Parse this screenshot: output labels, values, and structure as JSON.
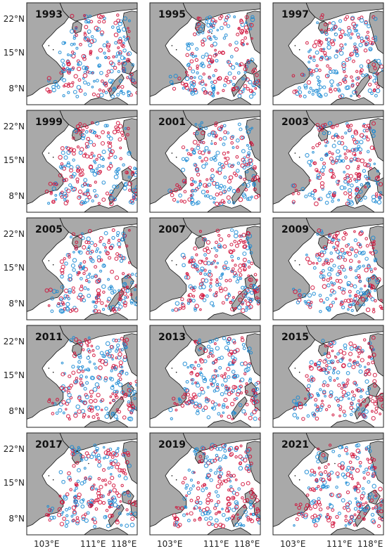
{
  "chart_data": {
    "type": "scatter",
    "panels": [
      {
        "year": "1993"
      },
      {
        "year": "1995"
      },
      {
        "year": "1997"
      },
      {
        "year": "1999"
      },
      {
        "year": "2001"
      },
      {
        "year": "2003"
      },
      {
        "year": "2005"
      },
      {
        "year": "2007"
      },
      {
        "year": "2009"
      },
      {
        "year": "2011"
      },
      {
        "year": "2013"
      },
      {
        "year": "2015"
      },
      {
        "year": "2017"
      },
      {
        "year": "2019"
      },
      {
        "year": "2021"
      }
    ],
    "lat_ticks": [
      "22°N",
      "15°N",
      "8°N"
    ],
    "lon_ticks": [
      "103°E",
      "111°E",
      "118°E"
    ],
    "colors": {
      "land": "#a9a9a9",
      "coast": "#111111",
      "red": "#d0103a",
      "blue": "#1a8ad4",
      "sea": "#ffffff"
    }
  }
}
